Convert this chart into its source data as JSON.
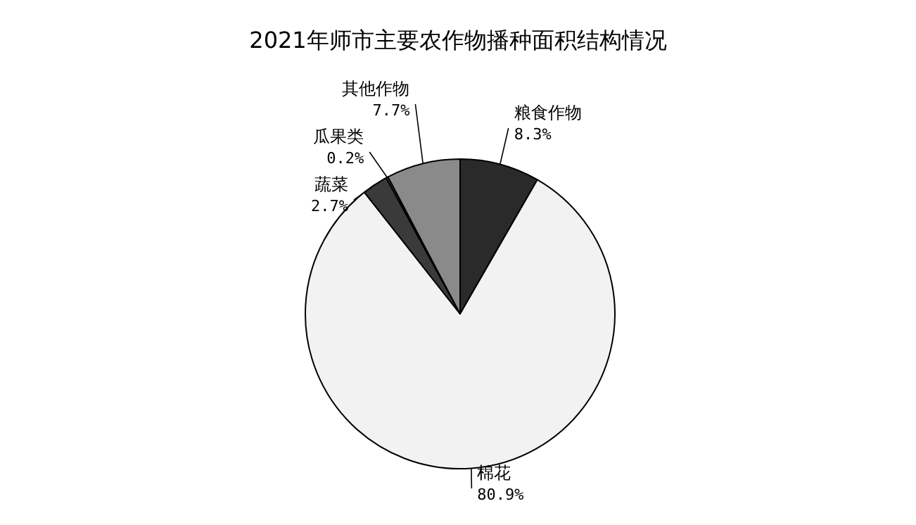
{
  "chart_data": {
    "type": "pie",
    "title": "2021年师市主要农作物播种面积结构情况",
    "categories": [
      "粮食作物",
      "棉花",
      "蔬菜",
      "瓜果类",
      "其他作物"
    ],
    "values": [
      8.3,
      80.9,
      2.7,
      0.2,
      7.7
    ],
    "value_labels": [
      "8.3%",
      "80.9%",
      "2.7%",
      "0.2%",
      "7.7%"
    ],
    "colors": [
      "#2a2a2a",
      "#f2f2f2",
      "#3a3a3a",
      "#555555",
      "#8a8a8a"
    ]
  }
}
